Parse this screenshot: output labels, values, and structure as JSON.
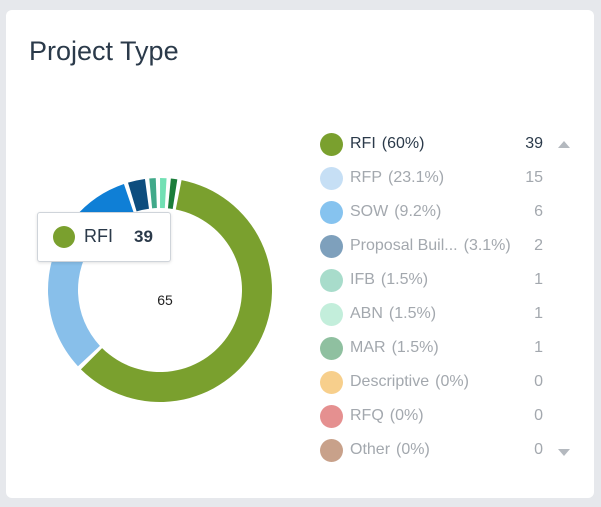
{
  "title": "Project Type",
  "tooltip": {
    "label": "RFI",
    "value": "39",
    "color": "#7aa02e"
  },
  "chart_data": {
    "type": "pie",
    "total": "65",
    "slices": [
      {
        "name": "RFI",
        "pct": "(60%)",
        "value": 39,
        "color": "#7aa02e"
      },
      {
        "name": "RFP",
        "pct": "(23.1%)",
        "value": 15,
        "color": "#88bfea"
      },
      {
        "name": "SOW",
        "pct": "(9.2%)",
        "value": 6,
        "color": "#0f7fd6"
      },
      {
        "name": "Proposal Buil...",
        "pct": "(3.1%)",
        "value": 2,
        "color": "#0d4d7e"
      },
      {
        "name": "IFB",
        "pct": "(1.5%)",
        "value": 1,
        "color": "#41a98a"
      },
      {
        "name": "ABN",
        "pct": "(1.5%)",
        "value": 1,
        "color": "#72e0b4"
      },
      {
        "name": "MAR",
        "pct": "(1.5%)",
        "value": 1,
        "color": "#1b7d3a"
      },
      {
        "name": "Descriptive",
        "pct": "(0%)",
        "value": 0,
        "color": "#f7c67a"
      },
      {
        "name": "RFQ",
        "pct": "(0%)",
        "value": 0,
        "color": "#e48a8a"
      },
      {
        "name": "Other",
        "pct": "(0%)",
        "value": 0,
        "color": "#c8a18a"
      }
    ]
  },
  "legend_colors": [
    "#7aa02e",
    "#c6dff5",
    "#86c3ef",
    "#7ea0bc",
    "#a8dccb",
    "#c3eedb",
    "#8fc0a0",
    "#f7cf8c",
    "#e59090",
    "#c8a18a"
  ],
  "legend": {
    "items": [
      {
        "label": "RFI",
        "pct": "(60%)",
        "count": "39"
      },
      {
        "label": "RFP",
        "pct": "(23.1%)",
        "count": "15"
      },
      {
        "label": "SOW",
        "pct": "(9.2%)",
        "count": "6"
      },
      {
        "label": "Proposal Buil...",
        "pct": "(3.1%)",
        "count": "2"
      },
      {
        "label": "IFB",
        "pct": "(1.5%)",
        "count": "1"
      },
      {
        "label": "ABN",
        "pct": "(1.5%)",
        "count": "1"
      },
      {
        "label": "MAR",
        "pct": "(1.5%)",
        "count": "1"
      },
      {
        "label": "Descriptive",
        "pct": "(0%)",
        "count": "0"
      },
      {
        "label": "RFQ",
        "pct": "(0%)",
        "count": "0"
      },
      {
        "label": "Other",
        "pct": "(0%)",
        "count": "0"
      }
    ]
  },
  "icons": {
    "scroll_up": "caret-up-icon",
    "scroll_down": "caret-down-icon"
  }
}
